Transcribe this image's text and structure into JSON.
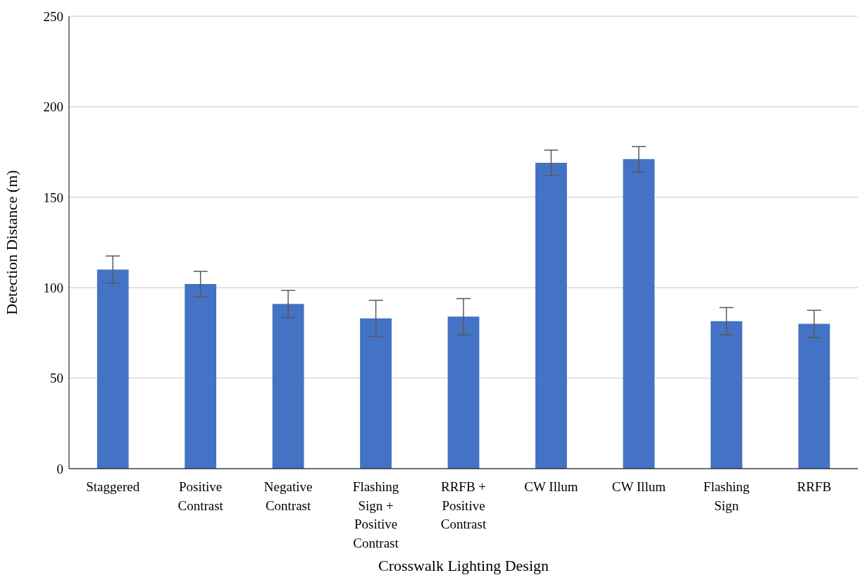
{
  "chart_data": {
    "type": "bar",
    "xlabel": "Crosswalk Lighting Design",
    "ylabel": "Detection Distance (m)",
    "categories": [
      "Staggered",
      "Positive Contrast",
      "Negative Contrast",
      "Flashing Sign + Positive Contrast",
      "RRFB + Positive Contrast",
      "CW Illum",
      "CW Illum",
      "Flashing Sign",
      "RRFB"
    ],
    "values": [
      110,
      102,
      91,
      83,
      84,
      169,
      171,
      81.5,
      80
    ],
    "errors": [
      7.5,
      7,
      7.5,
      10,
      10,
      7,
      7,
      7.5,
      7.5
    ],
    "color": "#4472c4",
    "ylim": [
      0,
      250
    ],
    "yticks": [
      0,
      50,
      100,
      150,
      200,
      250
    ],
    "grid": "y",
    "legend": false
  }
}
